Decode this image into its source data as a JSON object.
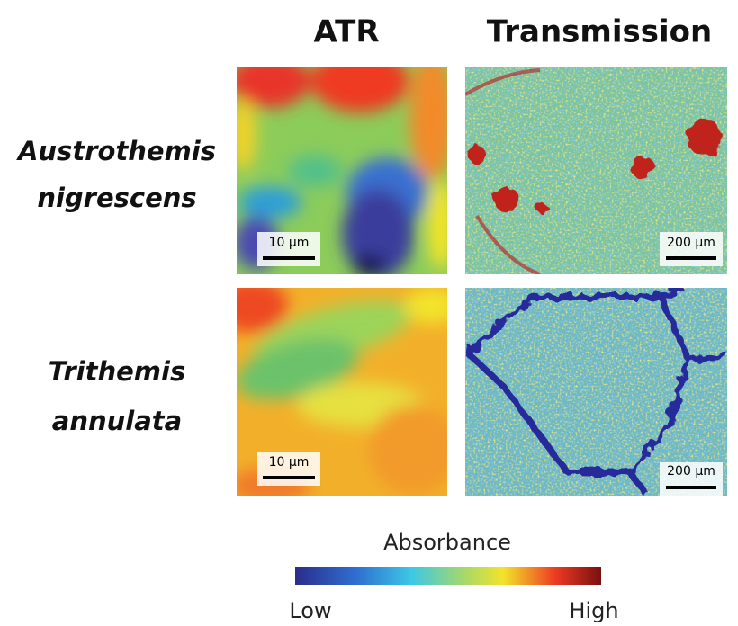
{
  "columns": [
    "ATR",
    "Transmission"
  ],
  "rows": [
    {
      "label": [
        "Austrothemis",
        "nigrescens"
      ]
    },
    {
      "label": [
        "Trithemis",
        "annulata"
      ]
    }
  ],
  "scale_bars": {
    "atr": "10 µm",
    "transmission": "200 µm"
  },
  "colorbar": {
    "title": "Absorbance",
    "low": "Low",
    "high": "High"
  }
}
